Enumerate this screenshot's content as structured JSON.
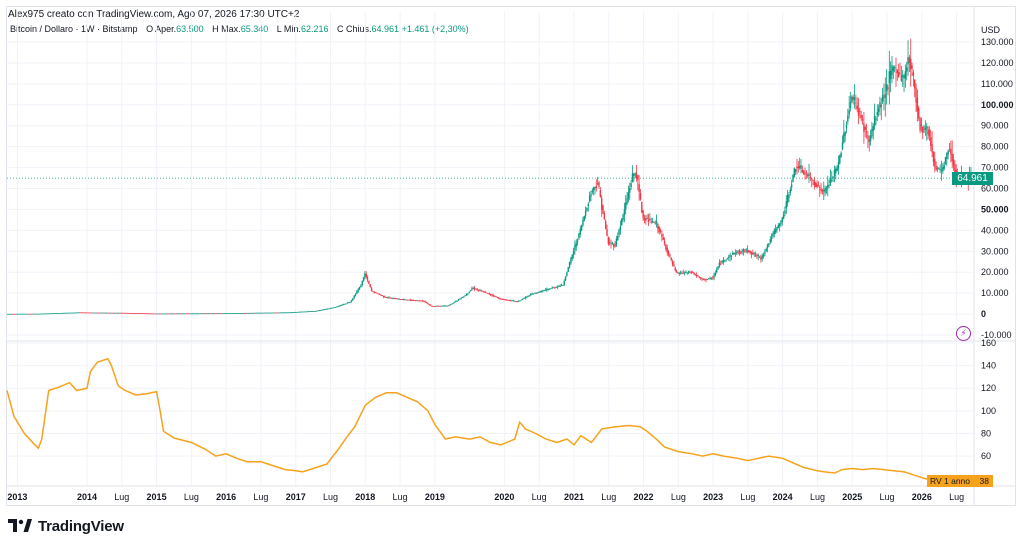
{
  "header": {
    "credit": "Alex975 creato con TradingView.com, Ago 07, 2026 17:30 UTC+2",
    "symbol": "Bitcoin / Dollaro · 1W · Bitstamp",
    "open_label": "O",
    "open_prefix": "Aper.",
    "open_value": "63.500",
    "high_label": "H",
    "high_prefix": "Max.",
    "high_value": "65.340",
    "low_label": "L",
    "low_prefix": "Min.",
    "low_value": "62.216",
    "close_label": "C",
    "close_prefix": "Chius.",
    "close_value": "64.961",
    "change": "+1.461 (+2,30%)"
  },
  "brand": {
    "name": "TradingView",
    "icon": "tradingview-logo-icon"
  },
  "price_tag": "64.961",
  "indicator_tag": {
    "label": "RV 1 anno",
    "value": "38"
  },
  "alert_icon": "lightning-alert-icon",
  "colors": {
    "up": "#089981",
    "down": "#f23645",
    "indicator": "#f7a21b",
    "grid": "#f0f3fa"
  },
  "chart_data": [
    {
      "type": "candlestick",
      "title": "Bitcoin / Dollaro · 1W · Bitstamp",
      "y_unit": "USD",
      "ylim": [
        -10000,
        130000
      ],
      "y_ticks": [
        {
          "value": 130000,
          "label": "130.000",
          "bold": false
        },
        {
          "value": 120000,
          "label": "120.000",
          "bold": false
        },
        {
          "value": 110000,
          "label": "110.000",
          "bold": false
        },
        {
          "value": 100000,
          "label": "100.000",
          "bold": true
        },
        {
          "value": 90000,
          "label": "90.000",
          "bold": false
        },
        {
          "value": 80000,
          "label": "80.000",
          "bold": false
        },
        {
          "value": 70000,
          "label": "70.000",
          "bold": false
        },
        {
          "value": 60000,
          "label": "60.000",
          "bold": false
        },
        {
          "value": 50000,
          "label": "50.000",
          "bold": true
        },
        {
          "value": 40000,
          "label": "40.000",
          "bold": false
        },
        {
          "value": 30000,
          "label": "30.000",
          "bold": false
        },
        {
          "value": 20000,
          "label": "20.000",
          "bold": false
        },
        {
          "value": 10000,
          "label": "10.000",
          "bold": false
        },
        {
          "value": 0,
          "label": "0",
          "bold": true
        },
        {
          "value": -10000,
          "label": "-10.000",
          "bold": false
        }
      ],
      "x_range": [
        2012.85,
        2026.75
      ],
      "price_path": [
        [
          2012.85,
          100
        ],
        [
          2013.3,
          150
        ],
        [
          2013.9,
          800
        ],
        [
          2014.1,
          700
        ],
        [
          2014.5,
          600
        ],
        [
          2015.0,
          250
        ],
        [
          2016.0,
          400
        ],
        [
          2016.9,
          800
        ],
        [
          2017.3,
          1500
        ],
        [
          2017.6,
          3500
        ],
        [
          2017.8,
          6000
        ],
        [
          2017.95,
          14000
        ],
        [
          2018.0,
          19500
        ],
        [
          2018.1,
          11000
        ],
        [
          2018.3,
          8000
        ],
        [
          2018.6,
          6800
        ],
        [
          2018.85,
          6300
        ],
        [
          2018.95,
          3800
        ],
        [
          2019.2,
          4000
        ],
        [
          2019.45,
          9000
        ],
        [
          2019.55,
          12500
        ],
        [
          2019.8,
          9500
        ],
        [
          2019.95,
          7200
        ],
        [
          2020.2,
          6000
        ],
        [
          2020.4,
          9500
        ],
        [
          2020.6,
          11500
        ],
        [
          2020.85,
          14000
        ],
        [
          2021.0,
          30000
        ],
        [
          2021.1,
          40000
        ],
        [
          2021.25,
          58000
        ],
        [
          2021.35,
          63000
        ],
        [
          2021.5,
          34000
        ],
        [
          2021.6,
          33000
        ],
        [
          2021.72,
          48000
        ],
        [
          2021.85,
          66000
        ],
        [
          2021.9,
          68000
        ],
        [
          2022.0,
          46000
        ],
        [
          2022.2,
          43000
        ],
        [
          2022.35,
          30000
        ],
        [
          2022.48,
          19500
        ],
        [
          2022.7,
          20000
        ],
        [
          2022.85,
          16500
        ],
        [
          2023.0,
          17000
        ],
        [
          2023.1,
          24000
        ],
        [
          2023.3,
          29000
        ],
        [
          2023.5,
          30500
        ],
        [
          2023.7,
          26500
        ],
        [
          2023.85,
          37000
        ],
        [
          2024.0,
          45000
        ],
        [
          2024.2,
          71000
        ],
        [
          2024.4,
          65000
        ],
        [
          2024.6,
          58000
        ],
        [
          2024.8,
          70000
        ],
        [
          2024.95,
          96000
        ],
        [
          2025.0,
          104000
        ],
        [
          2025.1,
          97000
        ],
        [
          2025.25,
          82000
        ],
        [
          2025.35,
          95000
        ],
        [
          2025.5,
          108000
        ],
        [
          2025.6,
          118000
        ],
        [
          2025.75,
          112000
        ],
        [
          2025.82,
          124000
        ],
        [
          2025.9,
          110000
        ],
        [
          2025.98,
          90000
        ],
        [
          2026.1,
          88000
        ],
        [
          2026.2,
          70000
        ],
        [
          2026.3,
          68000
        ],
        [
          2026.4,
          80000
        ],
        [
          2026.5,
          67000
        ],
        [
          2026.6,
          63000
        ],
        [
          2026.7,
          64961
        ]
      ],
      "last_price": 64961
    },
    {
      "type": "line",
      "series": [
        {
          "name": "RV 1 anno",
          "color": "#f7a21b"
        }
      ],
      "ylim": [
        30,
        160
      ],
      "y_ticks": [
        {
          "value": 160,
          "label": "160"
        },
        {
          "value": 140,
          "label": "140"
        },
        {
          "value": 120,
          "label": "120"
        },
        {
          "value": 100,
          "label": "100"
        },
        {
          "value": 80,
          "label": "80"
        },
        {
          "value": 60,
          "label": "60"
        }
      ],
      "x_range": [
        2012.85,
        2026.75
      ],
      "points": [
        [
          2012.85,
          118
        ],
        [
          2012.95,
          95
        ],
        [
          2013.1,
          80
        ],
        [
          2013.25,
          70
        ],
        [
          2013.3,
          67
        ],
        [
          2013.35,
          75
        ],
        [
          2013.45,
          118
        ],
        [
          2013.6,
          121
        ],
        [
          2013.75,
          125
        ],
        [
          2013.85,
          118
        ],
        [
          2014.0,
          120
        ],
        [
          2014.05,
          135
        ],
        [
          2014.15,
          143
        ],
        [
          2014.3,
          146
        ],
        [
          2014.35,
          140
        ],
        [
          2014.45,
          122
        ],
        [
          2014.55,
          118
        ],
        [
          2014.7,
          114
        ],
        [
          2014.85,
          115
        ],
        [
          2015.0,
          117
        ],
        [
          2015.05,
          100
        ],
        [
          2015.1,
          82
        ],
        [
          2015.25,
          76
        ],
        [
          2015.5,
          72
        ],
        [
          2015.7,
          66
        ],
        [
          2015.85,
          60
        ],
        [
          2016.0,
          62
        ],
        [
          2016.15,
          58
        ],
        [
          2016.3,
          55
        ],
        [
          2016.5,
          55
        ],
        [
          2016.6,
          53
        ],
        [
          2016.75,
          50
        ],
        [
          2016.85,
          48
        ],
        [
          2017.0,
          47
        ],
        [
          2017.1,
          46
        ],
        [
          2017.3,
          50
        ],
        [
          2017.45,
          53
        ],
        [
          2017.6,
          65
        ],
        [
          2017.75,
          78
        ],
        [
          2017.85,
          86
        ],
        [
          2018.0,
          105
        ],
        [
          2018.15,
          112
        ],
        [
          2018.3,
          116
        ],
        [
          2018.45,
          116
        ],
        [
          2018.6,
          112
        ],
        [
          2018.75,
          108
        ],
        [
          2018.9,
          100
        ],
        [
          2019.0,
          88
        ],
        [
          2019.15,
          75
        ],
        [
          2019.3,
          77
        ],
        [
          2019.5,
          75
        ],
        [
          2019.65,
          77
        ],
        [
          2019.8,
          72
        ],
        [
          2019.95,
          70
        ],
        [
          2020.15,
          75
        ],
        [
          2020.22,
          90
        ],
        [
          2020.3,
          84
        ],
        [
          2020.45,
          80
        ],
        [
          2020.6,
          75
        ],
        [
          2020.75,
          72
        ],
        [
          2020.9,
          75
        ],
        [
          2021.0,
          70
        ],
        [
          2021.1,
          78
        ],
        [
          2021.25,
          72
        ],
        [
          2021.4,
          84
        ],
        [
          2021.6,
          86
        ],
        [
          2021.8,
          87
        ],
        [
          2021.95,
          86
        ],
        [
          2022.05,
          82
        ],
        [
          2022.2,
          74
        ],
        [
          2022.3,
          68
        ],
        [
          2022.5,
          64
        ],
        [
          2022.7,
          62
        ],
        [
          2022.85,
          60
        ],
        [
          2023.0,
          62
        ],
        [
          2023.15,
          60
        ],
        [
          2023.35,
          58
        ],
        [
          2023.5,
          56
        ],
        [
          2023.65,
          58
        ],
        [
          2023.8,
          60
        ],
        [
          2024.0,
          58
        ],
        [
          2024.15,
          54
        ],
        [
          2024.3,
          50
        ],
        [
          2024.5,
          47
        ],
        [
          2024.6,
          46
        ],
        [
          2024.75,
          45
        ],
        [
          2024.85,
          48
        ],
        [
          2025.0,
          49
        ],
        [
          2025.15,
          48
        ],
        [
          2025.3,
          49
        ],
        [
          2025.45,
          48
        ],
        [
          2025.6,
          47
        ],
        [
          2025.75,
          46
        ],
        [
          2025.9,
          43
        ],
        [
          2026.05,
          40
        ],
        [
          2026.2,
          39
        ],
        [
          2026.35,
          38
        ],
        [
          2026.5,
          38
        ],
        [
          2026.7,
          38
        ]
      ],
      "last_value": 38
    }
  ],
  "x_axis": {
    "ticks": [
      {
        "t": 2013.0,
        "label": "2013",
        "bold": true
      },
      {
        "t": 2014.0,
        "label": "2014",
        "bold": true
      },
      {
        "t": 2014.5,
        "label": "Lug",
        "bold": false
      },
      {
        "t": 2015.0,
        "label": "2015",
        "bold": true
      },
      {
        "t": 2015.5,
        "label": "Lug",
        "bold": false
      },
      {
        "t": 2016.0,
        "label": "2016",
        "bold": true
      },
      {
        "t": 2016.5,
        "label": "Lug",
        "bold": false
      },
      {
        "t": 2017.0,
        "label": "2017",
        "bold": true
      },
      {
        "t": 2017.5,
        "label": "Lug",
        "bold": false
      },
      {
        "t": 2018.0,
        "label": "2018",
        "bold": true
      },
      {
        "t": 2018.5,
        "label": "Lug",
        "bold": false
      },
      {
        "t": 2019.0,
        "label": "2019",
        "bold": true
      },
      {
        "t": 2020.0,
        "label": "2020",
        "bold": true
      },
      {
        "t": 2020.5,
        "label": "Lug",
        "bold": false
      },
      {
        "t": 2021.0,
        "label": "2021",
        "bold": true
      },
      {
        "t": 2021.5,
        "label": "Lug",
        "bold": false
      },
      {
        "t": 2022.0,
        "label": "2022",
        "bold": true
      },
      {
        "t": 2022.5,
        "label": "Lug",
        "bold": false
      },
      {
        "t": 2023.0,
        "label": "2023",
        "bold": true
      },
      {
        "t": 2023.5,
        "label": "Lug",
        "bold": false
      },
      {
        "t": 2024.0,
        "label": "2024",
        "bold": true
      },
      {
        "t": 2024.5,
        "label": "Lug",
        "bold": false
      },
      {
        "t": 2025.0,
        "label": "2025",
        "bold": true
      },
      {
        "t": 2025.5,
        "label": "Lug",
        "bold": false
      },
      {
        "t": 2026.0,
        "label": "2026",
        "bold": true
      },
      {
        "t": 2026.5,
        "label": "Lug",
        "bold": false
      }
    ]
  }
}
